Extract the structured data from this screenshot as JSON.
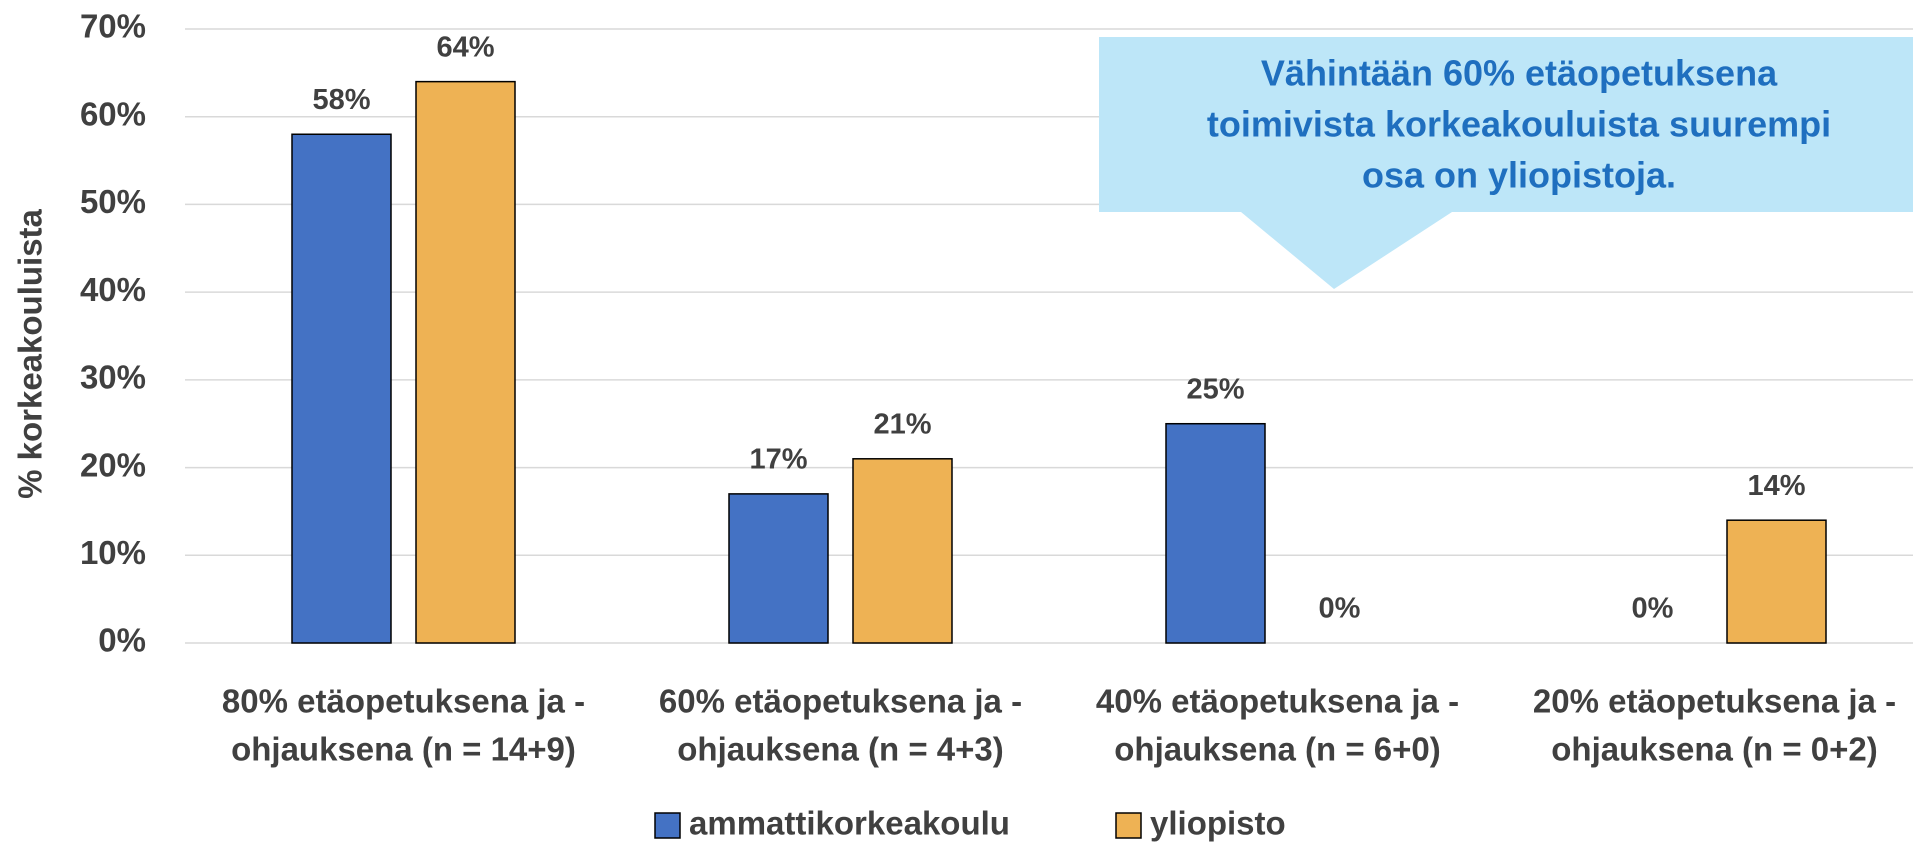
{
  "chart_data": {
    "type": "bar",
    "y_label": "% korkeakouluista",
    "categories": [
      [
        "80% etäopetuksena ja -",
        "ohjauksena (n = 14+9)"
      ],
      [
        "60% etäopetuksena ja -",
        "ohjauksena (n = 4+3)"
      ],
      [
        "40% etäopetuksena ja -",
        "ohjauksena (n = 6+0)"
      ],
      [
        "20% etäopetuksena ja -",
        "ohjauksena (n = 0+2)"
      ]
    ],
    "series": [
      {
        "name": "ammattikorkeakoulu",
        "color": "#4472c4",
        "values": [
          58,
          17,
          25,
          0
        ],
        "value_labels": [
          "58%",
          "17%",
          "25%",
          "0%"
        ]
      },
      {
        "name": "yliopisto",
        "color": "#eeb254",
        "values": [
          64,
          21,
          0,
          14
        ],
        "value_labels": [
          "64%",
          "21%",
          "0%",
          "14%"
        ]
      }
    ],
    "ylim": [
      0,
      70
    ],
    "yticks": [
      {
        "value": 0,
        "label": "0%"
      },
      {
        "value": 10,
        "label": "10%"
      },
      {
        "value": 20,
        "label": "20%"
      },
      {
        "value": 30,
        "label": "30%"
      },
      {
        "value": 40,
        "label": "40%"
      },
      {
        "value": 50,
        "label": "50%"
      },
      {
        "value": 60,
        "label": "60%"
      },
      {
        "value": 70,
        "label": "70%"
      }
    ],
    "grid": true,
    "legend": "bottom",
    "annotation": [
      "Vähintään 60% etäopetuksena",
      "toimivista korkeakouluista suurempi",
      "osa on yliopistoja."
    ]
  }
}
